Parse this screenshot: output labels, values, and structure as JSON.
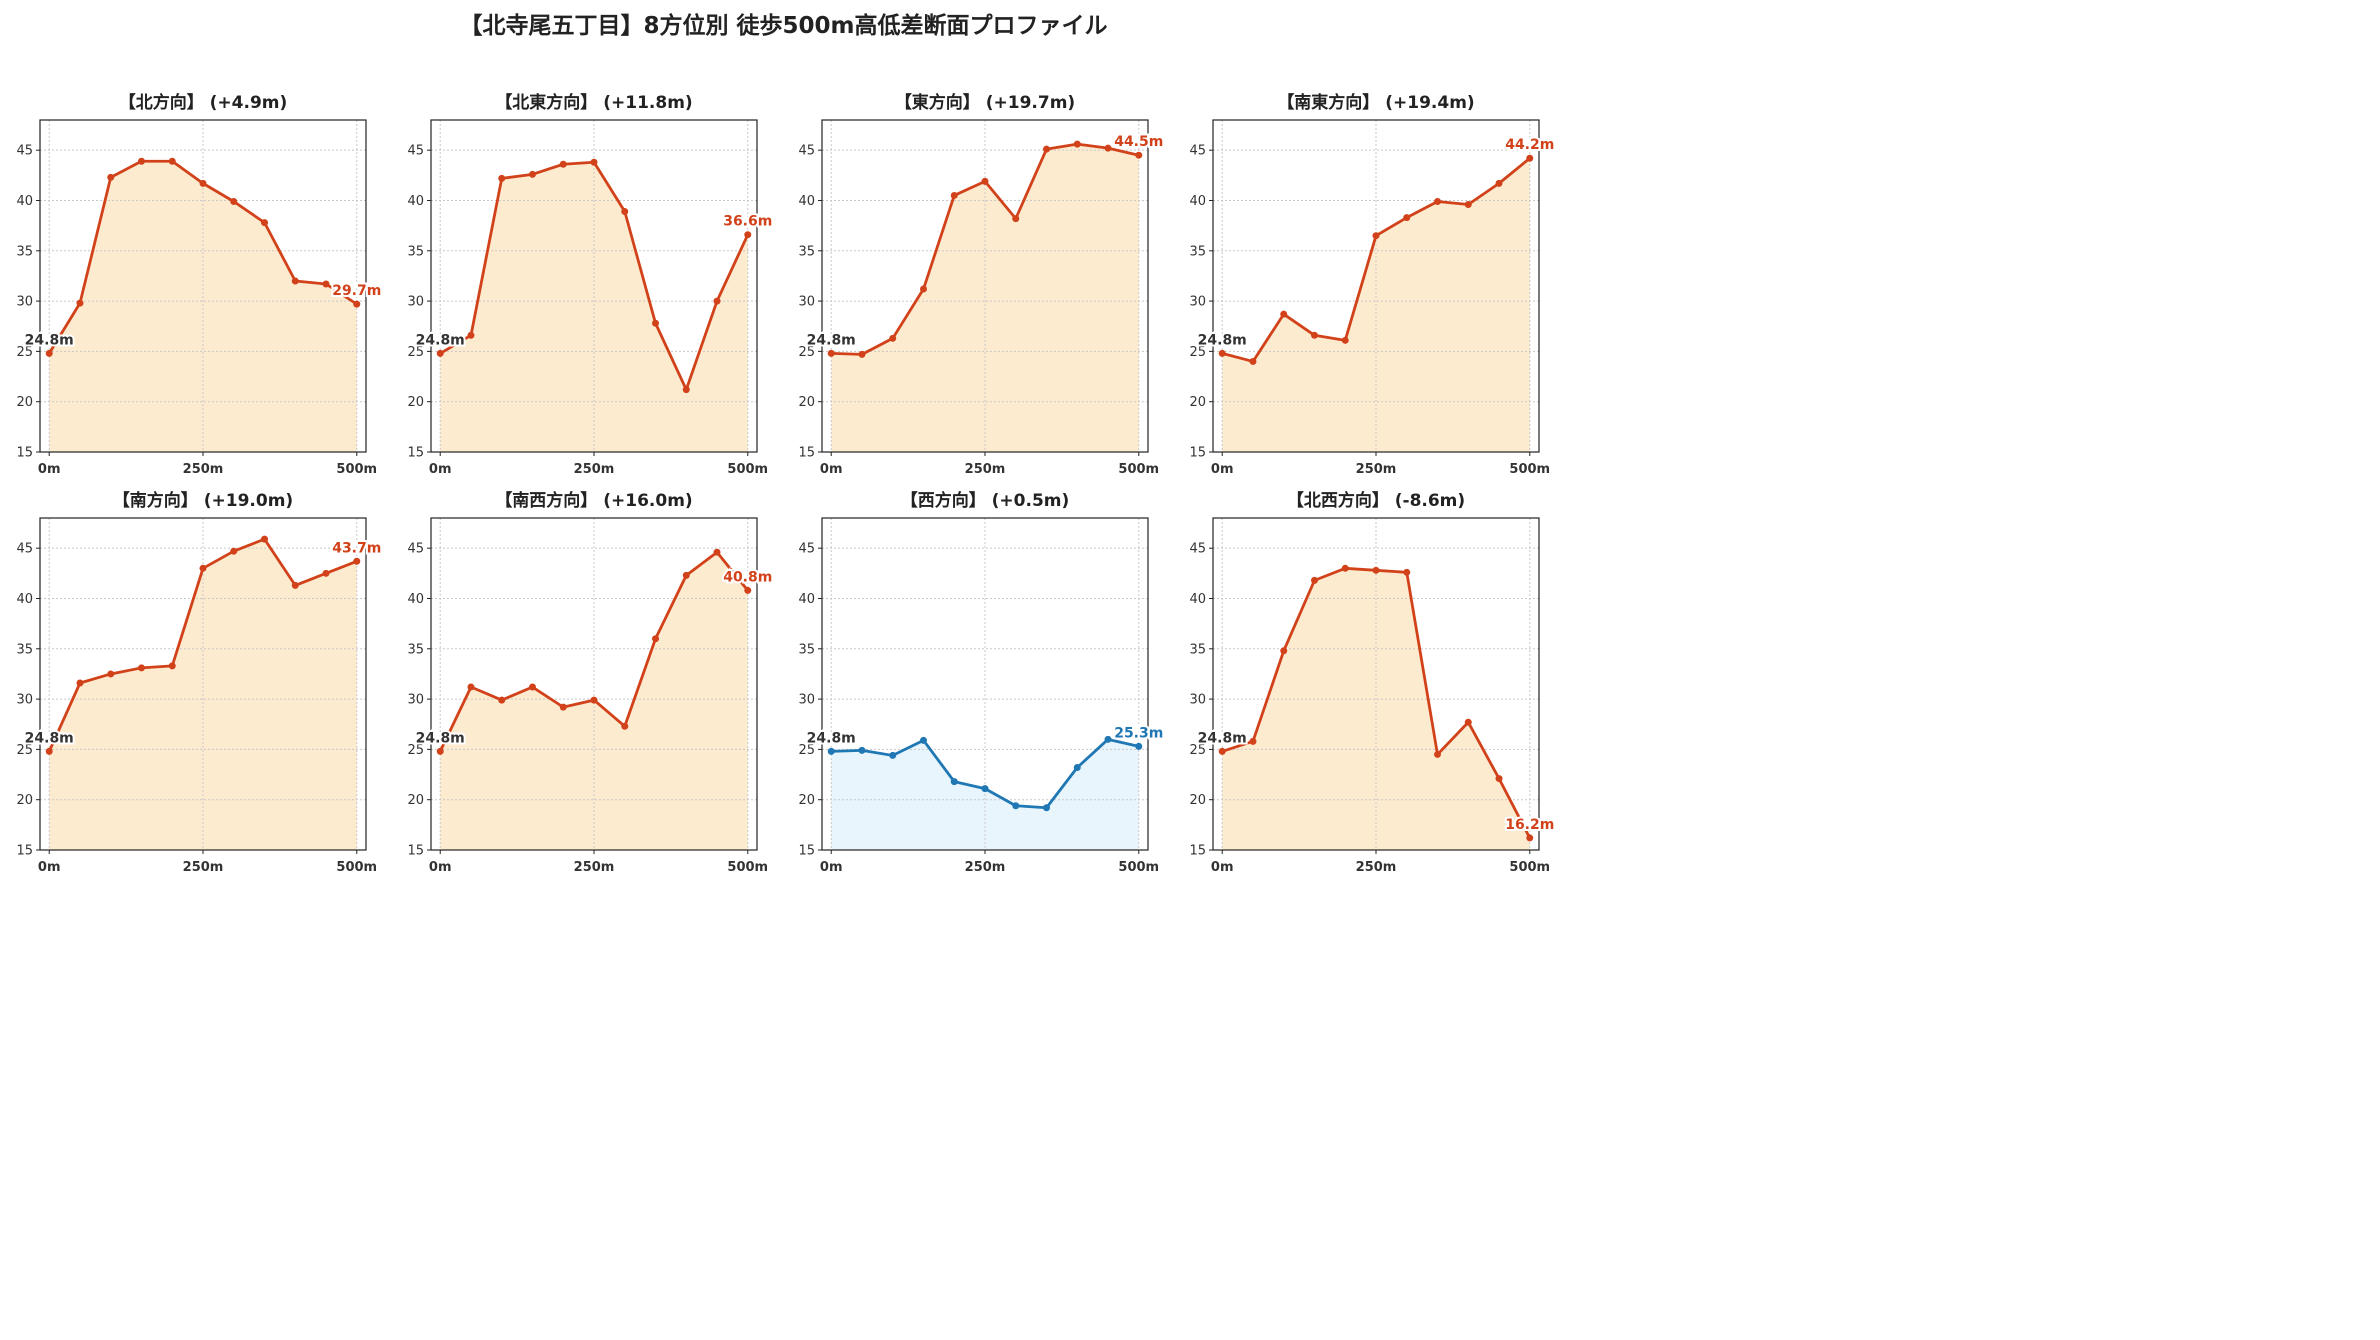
{
  "title": "【北寺尾五丁目】8方位別 徒歩500m高低差断面プロファイル",
  "colors": {
    "up_line": "#d2421a",
    "up_fill": "#fdebd0",
    "down_line": "#1f77b4",
    "down_fill": "#e8f5fc",
    "start_label": "#333333"
  },
  "chart_data": [
    {
      "type": "line",
      "title": "【北方向】 (+4.9m)",
      "style": "up",
      "start_label": "24.8m",
      "end_label": "29.7m",
      "x": [
        0,
        50,
        100,
        150,
        200,
        250,
        300,
        350,
        400,
        450,
        500
      ],
      "y": [
        24.8,
        29.8,
        42.3,
        43.9,
        43.9,
        41.7,
        39.9,
        37.8,
        32.0,
        31.7,
        29.7
      ],
      "xticks": [
        "0m",
        "250m",
        "500m"
      ],
      "ylim": [
        15,
        48
      ],
      "yticks": [
        15,
        20,
        25,
        30,
        35,
        40,
        45
      ],
      "grid": true
    },
    {
      "type": "line",
      "title": "【北東方向】 (+11.8m)",
      "style": "up",
      "start_label": "24.8m",
      "end_label": "36.6m",
      "x": [
        0,
        50,
        100,
        150,
        200,
        250,
        300,
        350,
        400,
        450,
        500
      ],
      "y": [
        24.8,
        26.6,
        42.2,
        42.6,
        43.6,
        43.8,
        38.9,
        27.8,
        21.2,
        30.0,
        36.6
      ],
      "xticks": [
        "0m",
        "250m",
        "500m"
      ],
      "ylim": [
        15,
        48
      ],
      "yticks": [
        15,
        20,
        25,
        30,
        35,
        40,
        45
      ],
      "grid": true
    },
    {
      "type": "line",
      "title": "【東方向】 (+19.7m)",
      "style": "up",
      "start_label": "24.8m",
      "end_label": "44.5m",
      "x": [
        0,
        50,
        100,
        150,
        200,
        250,
        300,
        350,
        400,
        450,
        500
      ],
      "y": [
        24.8,
        24.7,
        26.3,
        31.2,
        40.5,
        41.9,
        38.2,
        45.1,
        45.6,
        45.2,
        44.5
      ],
      "xticks": [
        "0m",
        "250m",
        "500m"
      ],
      "ylim": [
        15,
        48
      ],
      "yticks": [
        15,
        20,
        25,
        30,
        35,
        40,
        45
      ],
      "grid": true
    },
    {
      "type": "line",
      "title": "【南東方向】 (+19.4m)",
      "style": "up",
      "start_label": "24.8m",
      "end_label": "44.2m",
      "x": [
        0,
        50,
        100,
        150,
        200,
        250,
        300,
        350,
        400,
        450,
        500
      ],
      "y": [
        24.8,
        24.0,
        28.7,
        26.6,
        26.1,
        36.5,
        38.3,
        39.9,
        39.6,
        41.7,
        44.2
      ],
      "xticks": [
        "0m",
        "250m",
        "500m"
      ],
      "ylim": [
        15,
        48
      ],
      "yticks": [
        15,
        20,
        25,
        30,
        35,
        40,
        45
      ],
      "grid": true
    },
    {
      "type": "line",
      "title": "【南方向】 (+19.0m)",
      "style": "up",
      "start_label": "24.8m",
      "end_label": "43.7m",
      "x": [
        0,
        50,
        100,
        150,
        200,
        250,
        300,
        350,
        400,
        450,
        500
      ],
      "y": [
        24.8,
        31.6,
        32.5,
        33.1,
        33.3,
        43.0,
        44.7,
        45.9,
        41.3,
        42.5,
        43.7
      ],
      "xticks": [
        "0m",
        "250m",
        "500m"
      ],
      "ylim": [
        15,
        48
      ],
      "yticks": [
        15,
        20,
        25,
        30,
        35,
        40,
        45
      ],
      "grid": true
    },
    {
      "type": "line",
      "title": "【南西方向】 (+16.0m)",
      "style": "up",
      "start_label": "24.8m",
      "end_label": "40.8m",
      "x": [
        0,
        50,
        100,
        150,
        200,
        250,
        300,
        350,
        400,
        450,
        500
      ],
      "y": [
        24.8,
        31.2,
        29.9,
        31.2,
        29.2,
        29.9,
        27.3,
        36.0,
        42.3,
        44.6,
        40.8
      ],
      "xticks": [
        "0m",
        "250m",
        "500m"
      ],
      "ylim": [
        15,
        48
      ],
      "yticks": [
        15,
        20,
        25,
        30,
        35,
        40,
        45
      ],
      "grid": true
    },
    {
      "type": "line",
      "title": "【西方向】 (+0.5m)",
      "style": "down",
      "start_label": "24.8m",
      "end_label": "25.3m",
      "x": [
        0,
        50,
        100,
        150,
        200,
        250,
        300,
        350,
        400,
        450,
        500
      ],
      "y": [
        24.8,
        24.9,
        24.4,
        25.9,
        21.8,
        21.1,
        19.4,
        19.2,
        23.2,
        26.0,
        25.3
      ],
      "xticks": [
        "0m",
        "250m",
        "500m"
      ],
      "ylim": [
        15,
        48
      ],
      "yticks": [
        15,
        20,
        25,
        30,
        35,
        40,
        45
      ],
      "grid": true
    },
    {
      "type": "line",
      "title": "【北西方向】 (-8.6m)",
      "style": "up",
      "start_label": "24.8m",
      "end_label": "16.2m",
      "x": [
        0,
        50,
        100,
        150,
        200,
        250,
        300,
        350,
        400,
        450,
        500
      ],
      "y": [
        24.8,
        25.8,
        34.8,
        41.8,
        43.0,
        42.8,
        42.6,
        24.5,
        27.7,
        22.1,
        16.2
      ],
      "xticks": [
        "0m",
        "250m",
        "500m"
      ],
      "ylim": [
        15,
        48
      ],
      "yticks": [
        15,
        20,
        25,
        30,
        35,
        40,
        45
      ],
      "grid": true
    }
  ]
}
